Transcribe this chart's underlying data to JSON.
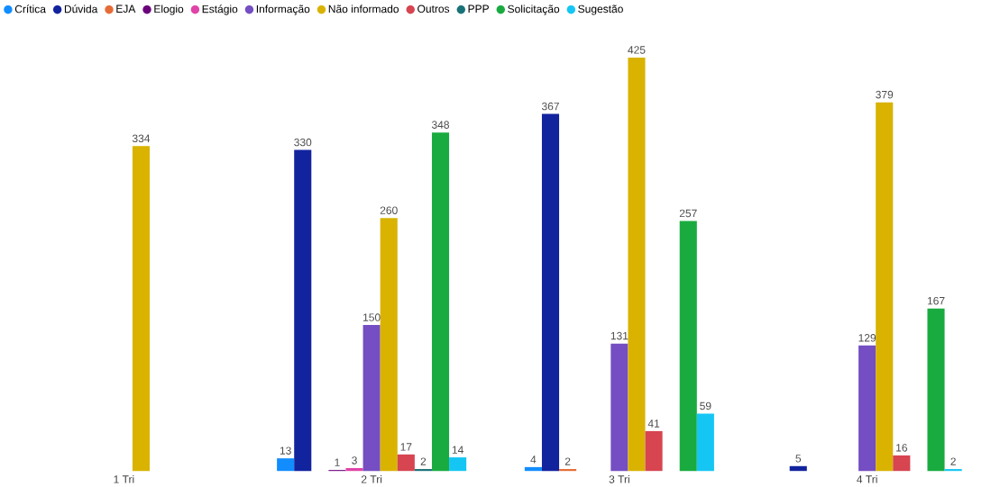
{
  "chart_data": {
    "type": "bar",
    "categories": [
      "1 Tri",
      "2 Tri",
      "3 Tri",
      "4 Tri"
    ],
    "data_labels": true,
    "legend": "top left",
    "series": [
      {
        "name": "Crítica",
        "color": "#118dff",
        "values": [
          null,
          13,
          4,
          null
        ]
      },
      {
        "name": "Dúvida",
        "color": "#12239e",
        "values": [
          null,
          330,
          367,
          5
        ]
      },
      {
        "name": "EJA",
        "color": "#e66c37",
        "values": [
          null,
          null,
          2,
          null
        ]
      },
      {
        "name": "Elogio",
        "color": "#6b007b",
        "values": [
          null,
          1,
          null,
          null
        ]
      },
      {
        "name": "Estágio",
        "color": "#e044a7",
        "values": [
          null,
          3,
          null,
          null
        ]
      },
      {
        "name": "Informação",
        "color": "#744ec2",
        "values": [
          null,
          150,
          131,
          129
        ]
      },
      {
        "name": "Não informado",
        "color": "#d9b300",
        "values": [
          334,
          260,
          425,
          379
        ]
      },
      {
        "name": "Outros",
        "color": "#d64550",
        "values": [
          null,
          17,
          41,
          16
        ]
      },
      {
        "name": "PPP",
        "color": "#197278",
        "values": [
          null,
          2,
          null,
          null
        ]
      },
      {
        "name": "Solicitação",
        "color": "#1aab40",
        "values": [
          null,
          348,
          257,
          167
        ]
      },
      {
        "name": "Sugestão",
        "color": "#15c6f4",
        "values": [
          null,
          14,
          59,
          2
        ]
      }
    ]
  }
}
